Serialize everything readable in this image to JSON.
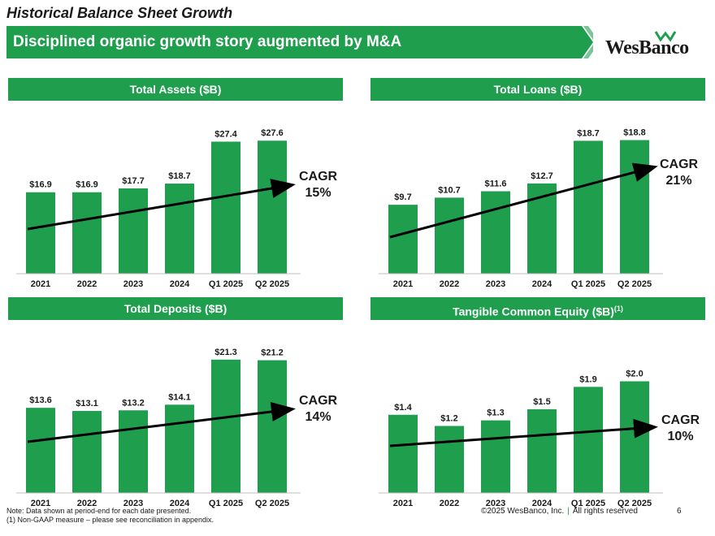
{
  "header": {
    "title": "Historical Balance Sheet Growth",
    "subtitle": "Disciplined organic growth story augmented by M&A",
    "logo": "WesBanco"
  },
  "colors": {
    "accent": "#1f9e4e",
    "bar": "#1f9e4e",
    "arrow": "#000000"
  },
  "chart_data": [
    {
      "type": "bar",
      "title": "Total Assets ($B)",
      "categories": [
        "2021",
        "2022",
        "2023",
        "2024",
        "Q1 2025",
        "Q2 2025"
      ],
      "values": [
        16.9,
        16.9,
        17.7,
        18.7,
        27.4,
        27.6
      ],
      "labels": [
        "$16.9",
        "$16.9",
        "$17.7",
        "$18.7",
        "$27.4",
        "$27.6"
      ],
      "ylim": [
        0,
        30
      ],
      "trend": "CAGR",
      "cagr_label": "CAGR",
      "cagr_value": "15%"
    },
    {
      "type": "bar",
      "title": "Total Loans ($B)",
      "categories": [
        "2021",
        "2022",
        "2023",
        "2024",
        "Q1 2025",
        "Q2 2025"
      ],
      "values": [
        9.7,
        10.7,
        11.6,
        12.7,
        18.7,
        18.8
      ],
      "labels": [
        "$9.7",
        "$10.7",
        "$11.6",
        "$12.7",
        "$18.7",
        "$18.8"
      ],
      "ylim": [
        0,
        20
      ],
      "trend": "CAGR",
      "cagr_label": "CAGR",
      "cagr_value": "21%"
    },
    {
      "type": "bar",
      "title": "Total Deposits ($B)",
      "categories": [
        "2021",
        "2022",
        "2023",
        "2024",
        "Q1 2025",
        "Q2 2025"
      ],
      "values": [
        13.6,
        13.1,
        13.2,
        14.1,
        21.3,
        21.2
      ],
      "labels": [
        "$13.6",
        "$13.1",
        "$13.2",
        "$14.1",
        "$21.3",
        "$21.2"
      ],
      "ylim": [
        0,
        24
      ],
      "trend": "CAGR",
      "cagr_label": "CAGR",
      "cagr_value": "14%"
    },
    {
      "type": "bar",
      "title": "Tangible Common Equity ($B)",
      "title_sup": "(1)",
      "categories": [
        "2021",
        "2022",
        "2023",
        "2024",
        "Q1 2025",
        "Q2 2025"
      ],
      "values": [
        1.4,
        1.2,
        1.3,
        1.5,
        1.9,
        2.0
      ],
      "labels": [
        "$1.4",
        "$1.2",
        "$1.3",
        "$1.5",
        "$1.9",
        "$2.0"
      ],
      "ylim": [
        0,
        2.4
      ],
      "trend": "CAGR",
      "cagr_label": "CAGR",
      "cagr_value": "10%"
    }
  ],
  "footer": {
    "note1": "Note: Data shown at period-end for each date presented.",
    "note2": "(1) Non-GAAP measure – please see reconciliation in appendix.",
    "copyright": "©2025 WesBanco, Inc.",
    "separator": "|",
    "rights": "All rights reserved",
    "page": "6"
  }
}
